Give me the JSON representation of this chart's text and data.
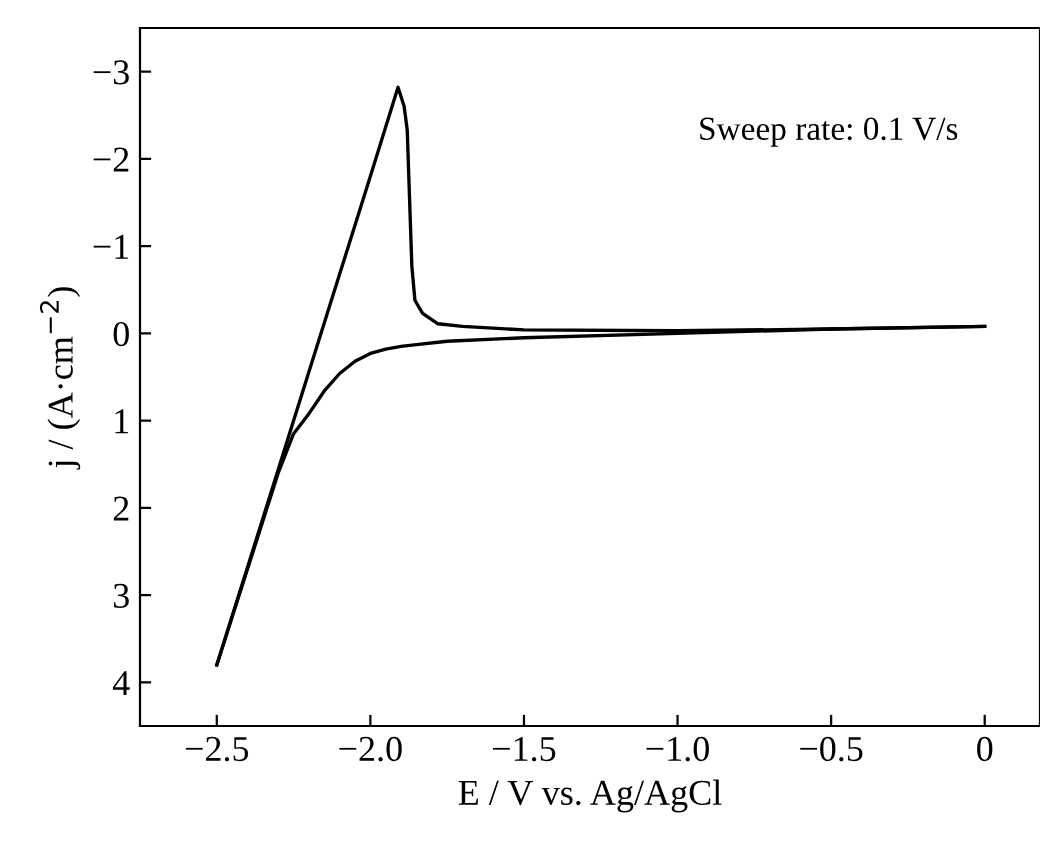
{
  "chart_data": {
    "type": "line",
    "xlabel": "E / V vs. Ag/AgCl",
    "ylabel": "j / (A·cm$^{−2}$)",
    "annotations": [
      "Sweep rate: 0.1 V/s"
    ],
    "series": [
      {
        "color": "#000000",
        "x": [
          0,
          -0.5,
          -1.0,
          -1.5,
          -1.75,
          -1.85,
          -1.9,
          -1.95,
          -2.0,
          -2.05,
          -2.1,
          -2.15,
          -2.2,
          -2.25,
          -2.3,
          -2.4,
          -2.5
        ],
        "values": [
          -0.08,
          -0.05,
          0.0,
          0.05,
          0.09,
          0.13,
          0.15,
          0.18,
          0.23,
          0.32,
          0.46,
          0.66,
          0.92,
          1.15,
          1.6,
          2.7,
          3.8
        ]
      },
      {
        "color": "#000000",
        "x": [
          -2.5,
          -2.4,
          -2.3,
          -2.2,
          -2.1,
          -2.0,
          -1.91,
          -1.89,
          -1.88,
          -1.865,
          -1.855,
          -1.83,
          -1.78,
          -1.7,
          -1.5,
          -1.0,
          -0.5,
          0
        ],
        "values": [
          3.8,
          2.68,
          1.56,
          0.44,
          -0.68,
          -1.8,
          -2.82,
          -2.6,
          -2.33,
          -0.77,
          -0.38,
          -0.23,
          -0.11,
          -0.08,
          -0.04,
          -0.03,
          -0.05,
          -0.08
        ]
      }
    ],
    "xlim": [
      -2.75,
      0.18
    ],
    "xticks": [
      {
        "value": -2.5,
        "label": "−2.5"
      },
      {
        "value": -2.0,
        "label": "−2.0"
      },
      {
        "value": -1.5,
        "label": "−1.5"
      },
      {
        "value": -1.0,
        "label": "−1.0"
      },
      {
        "value": -0.5,
        "label": "−0.5"
      },
      0
    ],
    "ylim": [
      4.5,
      -3.5
    ],
    "yticks": [
      {
        "value": -3,
        "label": "−3"
      },
      {
        "value": -2,
        "label": "−2"
      },
      {
        "value": -1,
        "label": "−1"
      },
      0,
      1,
      2,
      3,
      4
    ],
    "grid": false,
    "legend": false,
    "marker": "none",
    "line_style": "solid"
  }
}
